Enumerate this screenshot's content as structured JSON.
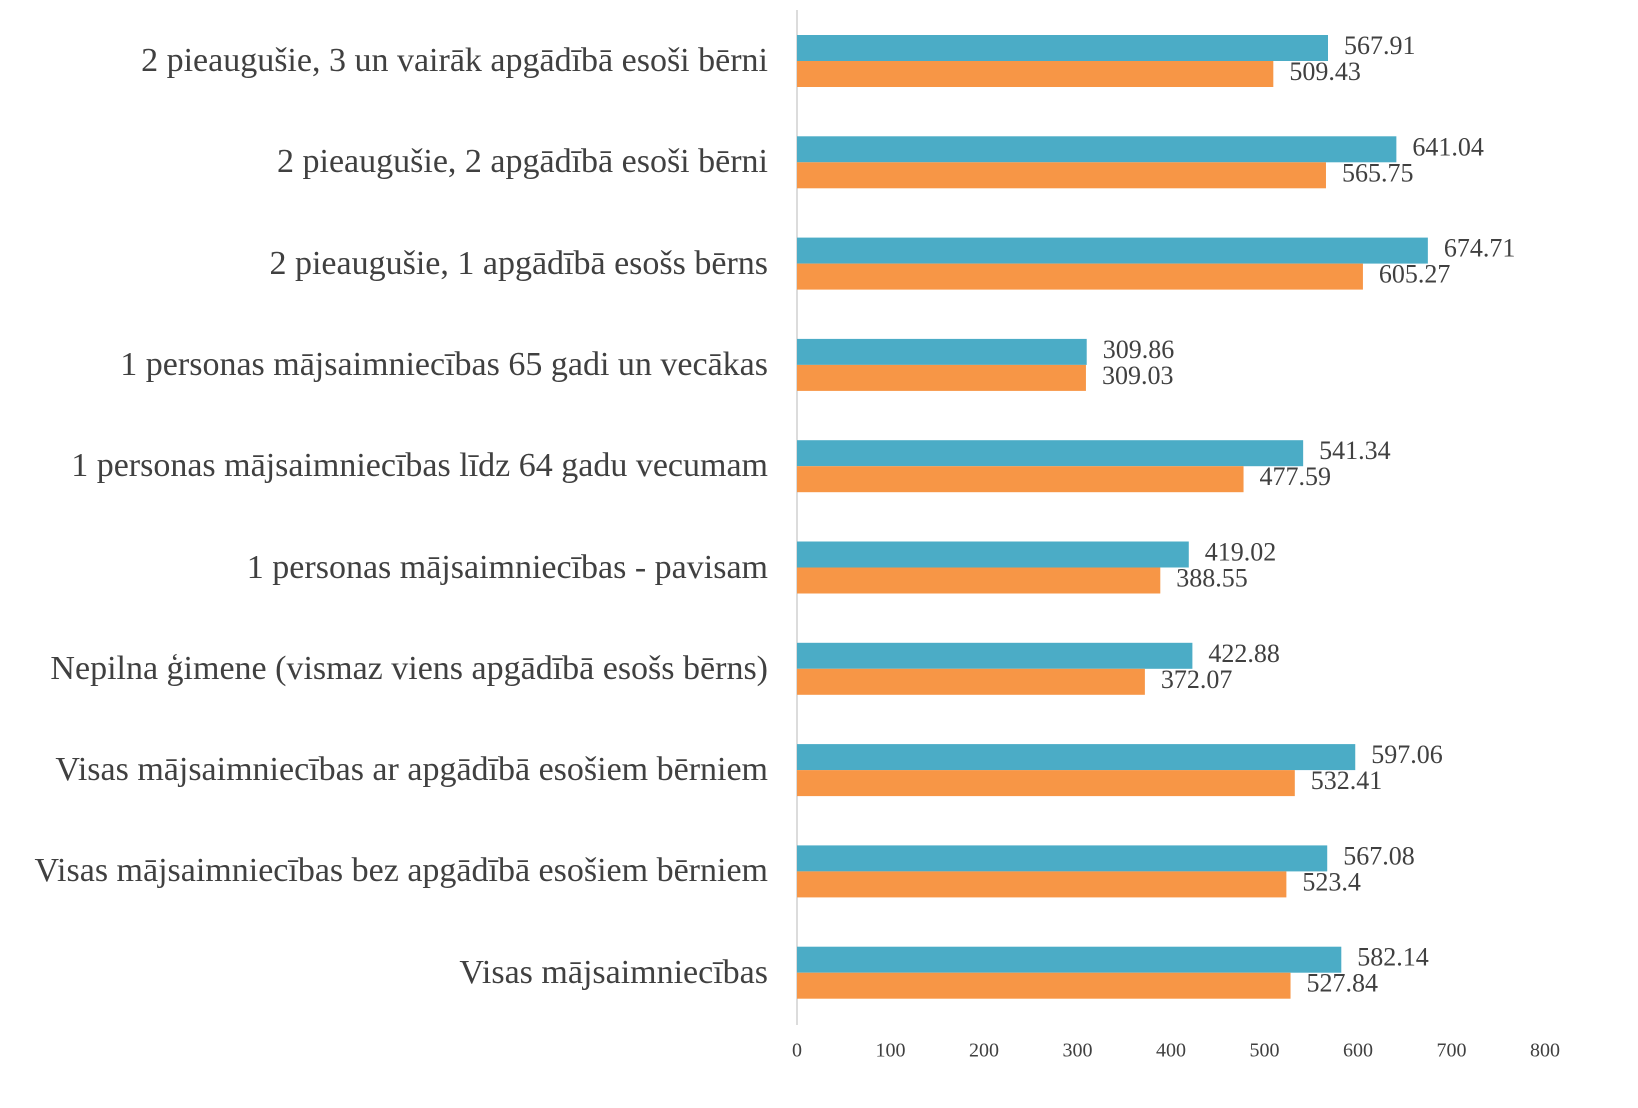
{
  "chart_data": {
    "type": "barh",
    "categories": [
      "2 pieaugušie, 3 un vairāk apgādībā esoši bērni",
      "2 pieaugušie, 2 apgādībā esoši bērni",
      "2 pieaugušie, 1 apgādībā esošs bērns",
      "1 personas mājsaimniecības 65 gadi un vecākas",
      "1 personas mājsaimniecības līdz 64 gadu vecumam",
      "1 personas mājsaimniecības - pavisam",
      "Nepilna ģimene (vismaz viens apgādībā esošs bērns)",
      "Visas mājsaimniecības ar apgādībā esošiem bērniem",
      "Visas mājsaimniecības bez apgādībā esošiem bērniem",
      "Visas mājsaimniecības"
    ],
    "series": [
      {
        "color": "#4bacc6",
        "values": [
          567.91,
          641.04,
          674.71,
          309.86,
          541.34,
          419.02,
          422.88,
          597.06,
          567.08,
          582.14
        ]
      },
      {
        "color": "#f79646",
        "values": [
          509.43,
          565.75,
          605.27,
          309.03,
          477.59,
          388.55,
          372.07,
          532.41,
          523.4,
          527.84
        ]
      }
    ],
    "xlim": [
      0,
      800
    ],
    "xticks": [
      0,
      100,
      200,
      300,
      400,
      500,
      600,
      700,
      800
    ],
    "grid": false
  }
}
